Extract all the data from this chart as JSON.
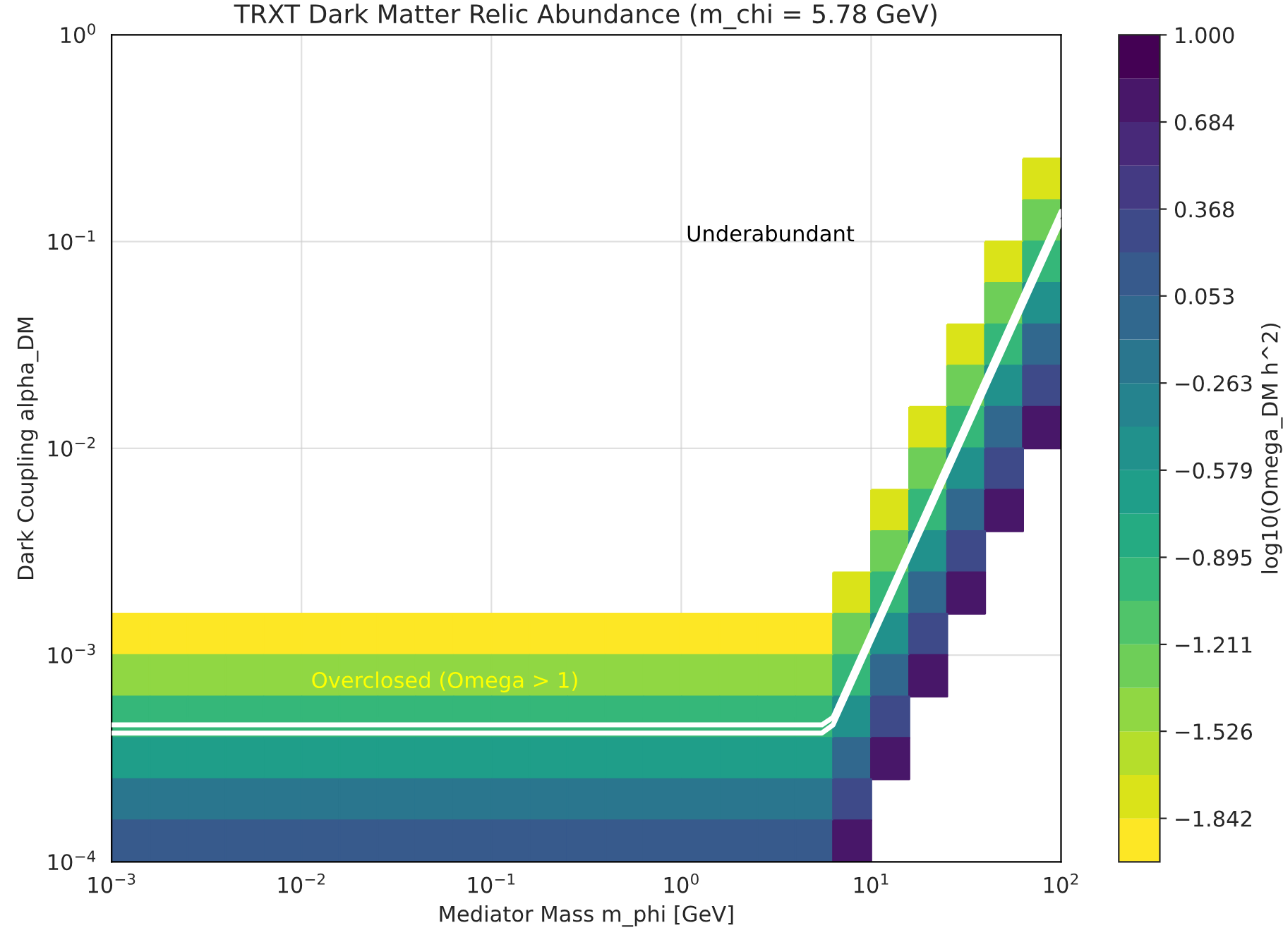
{
  "chart_data": {
    "type": "heatmap",
    "title": "TRXT Dark Matter Relic Abundance (m_chi = 5.78 GeV)",
    "xlabel": "Mediator Mass m_phi [GeV]",
    "ylabel": "Dark Coupling alpha_DM",
    "clabel": "log10(Omega_DM h^2)",
    "x": [
      0.00126,
      0.002,
      0.00316,
      0.00501,
      0.00794,
      0.0126,
      0.02,
      0.0316,
      0.0501,
      0.0794,
      0.126,
      0.2,
      0.316,
      0.501,
      0.794,
      1.26,
      2,
      3.16,
      5.01,
      7.94,
      12.6,
      20,
      31.6,
      50.1,
      79.4
    ],
    "y": [
      0.2,
      0.126,
      0.0794,
      0.0501,
      0.0316,
      0.02,
      0.0126,
      0.00794,
      0.00501,
      0.00316,
      0.002,
      0.00126,
      0.000794,
      0.000501,
      0.000316,
      0.0002,
      0.000126
    ],
    "cells": [
      [
        null,
        null,
        null,
        null,
        null,
        null,
        null,
        null,
        null,
        null,
        null,
        null,
        null,
        null,
        null,
        null,
        null,
        null,
        null,
        null,
        null,
        null,
        null,
        null,
        -1.7
      ],
      [
        null,
        null,
        null,
        null,
        null,
        null,
        null,
        null,
        null,
        null,
        null,
        null,
        null,
        null,
        null,
        null,
        null,
        null,
        null,
        null,
        null,
        null,
        null,
        null,
        -1.3
      ],
      [
        null,
        null,
        null,
        null,
        null,
        null,
        null,
        null,
        null,
        null,
        null,
        null,
        null,
        null,
        null,
        null,
        null,
        null,
        null,
        null,
        null,
        null,
        null,
        -1.7,
        -0.9
      ],
      [
        null,
        null,
        null,
        null,
        null,
        null,
        null,
        null,
        null,
        null,
        null,
        null,
        null,
        null,
        null,
        null,
        null,
        null,
        null,
        null,
        null,
        null,
        null,
        -1.3,
        -0.5
      ],
      [
        null,
        null,
        null,
        null,
        null,
        null,
        null,
        null,
        null,
        null,
        null,
        null,
        null,
        null,
        null,
        null,
        null,
        null,
        null,
        null,
        null,
        null,
        -1.7,
        -0.9,
        -0.1
      ],
      [
        null,
        null,
        null,
        null,
        null,
        null,
        null,
        null,
        null,
        null,
        null,
        null,
        null,
        null,
        null,
        null,
        null,
        null,
        null,
        null,
        null,
        null,
        -1.3,
        -0.5,
        0.3
      ],
      [
        null,
        null,
        null,
        null,
        null,
        null,
        null,
        null,
        null,
        null,
        null,
        null,
        null,
        null,
        null,
        null,
        null,
        null,
        null,
        null,
        null,
        -1.7,
        -0.9,
        -0.1,
        0.7
      ],
      [
        null,
        null,
        null,
        null,
        null,
        null,
        null,
        null,
        null,
        null,
        null,
        null,
        null,
        null,
        null,
        null,
        null,
        null,
        null,
        null,
        null,
        -1.3,
        -0.5,
        0.3,
        null
      ],
      [
        null,
        null,
        null,
        null,
        null,
        null,
        null,
        null,
        null,
        null,
        null,
        null,
        null,
        null,
        null,
        null,
        null,
        null,
        null,
        null,
        -1.7,
        -0.9,
        -0.1,
        0.7,
        null
      ],
      [
        null,
        null,
        null,
        null,
        null,
        null,
        null,
        null,
        null,
        null,
        null,
        null,
        null,
        null,
        null,
        null,
        null,
        null,
        null,
        null,
        -1.3,
        -0.5,
        0.3,
        null,
        null
      ],
      [
        null,
        null,
        null,
        null,
        null,
        null,
        null,
        null,
        null,
        null,
        null,
        null,
        null,
        null,
        null,
        null,
        null,
        null,
        null,
        -1.7,
        -0.9,
        -0.1,
        0.7,
        null,
        null
      ],
      [
        -1.85,
        -1.85,
        -1.85,
        -1.85,
        -1.85,
        -1.85,
        -1.85,
        -1.85,
        -1.85,
        -1.85,
        -1.85,
        -1.85,
        -1.85,
        -1.85,
        -1.85,
        -1.85,
        -1.85,
        -1.85,
        -1.85,
        -1.3,
        -0.5,
        0.3,
        null,
        null,
        null
      ],
      [
        -1.45,
        -1.45,
        -1.45,
        -1.45,
        -1.45,
        -1.45,
        -1.45,
        -1.45,
        -1.45,
        -1.45,
        -1.45,
        -1.45,
        -1.45,
        -1.45,
        -1.45,
        -1.45,
        -1.45,
        -1.45,
        -1.45,
        -0.9,
        -0.1,
        0.7,
        null,
        null,
        null
      ],
      [
        -1.05,
        -1.05,
        -1.05,
        -1.05,
        -1.05,
        -1.05,
        -1.05,
        -1.05,
        -1.05,
        -1.05,
        -1.05,
        -1.05,
        -1.05,
        -1.05,
        -1.05,
        -1.05,
        -1.05,
        -1.05,
        -1.05,
        -0.5,
        0.3,
        null,
        null,
        null,
        null
      ],
      [
        -0.65,
        -0.65,
        -0.65,
        -0.65,
        -0.65,
        -0.65,
        -0.65,
        -0.65,
        -0.65,
        -0.65,
        -0.65,
        -0.65,
        -0.65,
        -0.65,
        -0.65,
        -0.65,
        -0.65,
        -0.65,
        -0.65,
        -0.1,
        0.7,
        null,
        null,
        null,
        null
      ],
      [
        -0.25,
        -0.25,
        -0.25,
        -0.25,
        -0.25,
        -0.25,
        -0.25,
        -0.25,
        -0.25,
        -0.25,
        -0.25,
        -0.25,
        -0.25,
        -0.25,
        -0.25,
        -0.25,
        -0.25,
        -0.25,
        -0.25,
        0.3,
        null,
        null,
        null,
        null,
        null
      ],
      [
        0.15,
        0.15,
        0.15,
        0.15,
        0.15,
        0.15,
        0.15,
        0.15,
        0.15,
        0.15,
        0.15,
        0.15,
        0.15,
        0.15,
        0.15,
        0.15,
        0.15,
        0.15,
        0.15,
        0.7,
        null,
        null,
        null,
        null,
        null
      ]
    ],
    "series": [
      {
        "type": "line",
        "color": "#ffffff",
        "x": [
          0.001,
          5.5,
          6.3,
          100
        ],
        "values": [
          0.00046,
          0.00046,
          0.0005,
          0.14
        ]
      },
      {
        "type": "line",
        "color": "#ffffff",
        "x": [
          0.001,
          5.5,
          6.3,
          100
        ],
        "values": [
          0.00042,
          0.00042,
          0.00046,
          0.125
        ]
      }
    ],
    "clim": [
      -2,
      1
    ],
    "cticks": [
      {
        "value": 1.0,
        "label": "1.000"
      },
      {
        "value": 0.684,
        "label": "0.684"
      },
      {
        "value": 0.368,
        "label": "0.368"
      },
      {
        "value": 0.053,
        "label": "0.053"
      },
      {
        "value": -0.263,
        "label": "−0.263"
      },
      {
        "value": -0.579,
        "label": "−0.579"
      },
      {
        "value": -0.895,
        "label": "−0.895"
      },
      {
        "value": -1.211,
        "label": "−1.211"
      },
      {
        "value": -1.526,
        "label": "−1.526"
      },
      {
        "value": -1.842,
        "label": "−1.842"
      }
    ],
    "log": "xy",
    "xlim": [
      0.001,
      100
    ],
    "ylim": [
      0.0001,
      1
    ],
    "xticks": [
      {
        "value": 0.001,
        "label": "10$^{−3}$"
      },
      {
        "value": 0.01,
        "label": "10$^{−2}$"
      },
      {
        "value": 0.1,
        "label": "10$^{−1}$"
      },
      {
        "value": 1,
        "label": "10$^{0}$"
      },
      {
        "value": 10,
        "label": "10$^{1}$"
      },
      {
        "value": 100,
        "label": "10$^{2}$"
      }
    ],
    "yticks": [
      {
        "value": 0.0001,
        "label": "10$^{−4}$"
      },
      {
        "value": 0.001,
        "label": "10$^{−3}$"
      },
      {
        "value": 0.01,
        "label": "10$^{−2}$"
      },
      {
        "value": 0.1,
        "label": "10$^{−1}$"
      },
      {
        "value": 1,
        "label": "10$^{0}$"
      }
    ],
    "grid": true,
    "annotations": [
      "Underabundant",
      "Overclosed (Omega > 1)"
    ]
  }
}
